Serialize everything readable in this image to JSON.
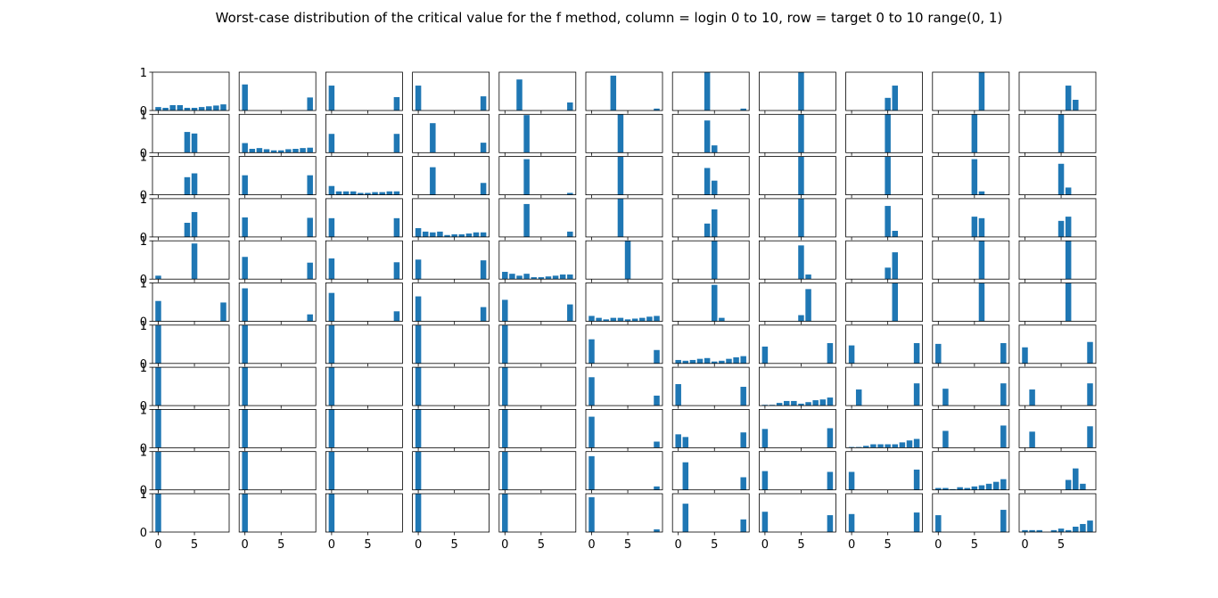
{
  "chart_data": {
    "type": "bar",
    "title": "Worst-case distribution of the critical value for the f method, column = login 0 to 10, row = target 0 to 10 range(0, 1)",
    "rows": 11,
    "cols": 11,
    "x": [
      0,
      1,
      2,
      3,
      4,
      5,
      6,
      7,
      8,
      9
    ],
    "xlim": [
      -0.8,
      9.8
    ],
    "ylim": [
      0,
      1
    ],
    "xticks": [
      0,
      5
    ],
    "yticks": [
      0,
      1
    ],
    "color": "#1f77b4",
    "panels": [
      [
        [
          0.09,
          0.07,
          0.14,
          0.14,
          0.07,
          0.07,
          0.09,
          0.11,
          0.13,
          0.16
        ],
        [
          0,
          0,
          0,
          0,
          0.54,
          0.5,
          0,
          0,
          0,
          0
        ],
        [
          0,
          0,
          0,
          0,
          0.46,
          0.56,
          0,
          0,
          0,
          0
        ],
        [
          0,
          0,
          0,
          0,
          0.37,
          0.65,
          0,
          0,
          0,
          0
        ],
        [
          0.09,
          0,
          0,
          0,
          0,
          0.93,
          0,
          0,
          0,
          0
        ],
        [
          0.53,
          0,
          0,
          0,
          0,
          0,
          0,
          0,
          0,
          0.49
        ],
        [
          1,
          0,
          0,
          0,
          0,
          0,
          0,
          0,
          0,
          0
        ],
        [
          1,
          0,
          0,
          0,
          0,
          0,
          0,
          0,
          0,
          0
        ],
        [
          1,
          0,
          0,
          0,
          0,
          0,
          0,
          0,
          0,
          0
        ],
        [
          1,
          0,
          0,
          0,
          0,
          0,
          0,
          0,
          0,
          0
        ],
        [
          1,
          0,
          0,
          0,
          0,
          0,
          0,
          0,
          0,
          0
        ]
      ],
      [
        [
          0.68,
          0,
          0,
          0,
          0,
          0,
          0,
          0,
          0,
          0.34
        ],
        [
          0.25,
          0.1,
          0.12,
          0.09,
          0.06,
          0.06,
          0.09,
          0.1,
          0.12,
          0.13
        ],
        [
          0.51,
          0,
          0,
          0,
          0,
          0,
          0,
          0,
          0,
          0.51
        ],
        [
          0.51,
          0,
          0,
          0,
          0,
          0,
          0,
          0,
          0,
          0.5
        ],
        [
          0.58,
          0,
          0,
          0,
          0,
          0,
          0,
          0,
          0,
          0.43
        ],
        [
          0.86,
          0,
          0,
          0,
          0,
          0,
          0,
          0,
          0,
          0.18
        ],
        [
          1,
          0,
          0,
          0,
          0,
          0,
          0,
          0,
          0,
          0
        ],
        [
          1,
          0,
          0,
          0,
          0,
          0,
          0,
          0,
          0,
          0
        ],
        [
          1,
          0,
          0,
          0,
          0,
          0,
          0,
          0,
          0,
          0
        ],
        [
          1,
          0,
          0,
          0,
          0,
          0,
          0,
          0,
          0,
          0
        ],
        [
          1,
          0,
          0,
          0,
          0,
          0,
          0,
          0,
          0,
          0
        ]
      ],
      [
        [
          0.65,
          0,
          0,
          0,
          0,
          0,
          0,
          0,
          0,
          0.35
        ],
        [
          0.49,
          0,
          0,
          0,
          0,
          0,
          0,
          0,
          0,
          0.49
        ],
        [
          0.23,
          0.09,
          0.09,
          0.09,
          0.05,
          0.05,
          0.07,
          0.07,
          0.09,
          0.09
        ],
        [
          0.49,
          0,
          0,
          0,
          0,
          0,
          0,
          0,
          0,
          0.49
        ],
        [
          0.54,
          0,
          0,
          0,
          0,
          0,
          0,
          0,
          0,
          0.44
        ],
        [
          0.74,
          0,
          0,
          0,
          0,
          0,
          0,
          0,
          0,
          0.26
        ],
        [
          1,
          0,
          0,
          0,
          0,
          0,
          0,
          0,
          0,
          0
        ],
        [
          1,
          0,
          0,
          0,
          0,
          0,
          0,
          0,
          0,
          0
        ],
        [
          1,
          0,
          0,
          0,
          0,
          0,
          0,
          0,
          0,
          0
        ],
        [
          1,
          0,
          0,
          0,
          0,
          0,
          0,
          0,
          0,
          0
        ],
        [
          1,
          0,
          0,
          0,
          0,
          0,
          0,
          0,
          0,
          0
        ]
      ],
      [
        [
          0.65,
          0,
          0,
          0,
          0,
          0,
          0,
          0,
          0,
          0.37
        ],
        [
          0,
          0,
          0.77,
          0,
          0,
          0,
          0,
          0,
          0,
          0.26
        ],
        [
          0,
          0,
          0.72,
          0,
          0,
          0,
          0,
          0,
          0,
          0.31
        ],
        [
          0.23,
          0.14,
          0.12,
          0.14,
          0.05,
          0.07,
          0.07,
          0.09,
          0.12,
          0.12
        ],
        [
          0.51,
          0,
          0,
          0,
          0,
          0,
          0,
          0,
          0,
          0.49
        ],
        [
          0.65,
          0,
          0,
          0,
          0,
          0,
          0,
          0,
          0,
          0.37
        ],
        [
          1,
          0,
          0,
          0,
          0,
          0,
          0,
          0,
          0,
          0
        ],
        [
          1,
          0,
          0,
          0,
          0,
          0,
          0,
          0,
          0,
          0
        ],
        [
          1,
          0,
          0,
          0,
          0,
          0,
          0,
          0,
          0,
          0
        ],
        [
          1,
          0,
          0,
          0,
          0,
          0,
          0,
          0,
          0,
          0
        ],
        [
          1,
          0,
          0,
          0,
          0,
          0,
          0,
          0,
          0,
          0
        ]
      ],
      [
        [
          0,
          0,
          0.81,
          0,
          0,
          0,
          0,
          0,
          0,
          0.21
        ],
        [
          0,
          0,
          0,
          0.98,
          0,
          0,
          0,
          0,
          0,
          0
        ],
        [
          0,
          0,
          0,
          0.93,
          0,
          0,
          0,
          0,
          0,
          0.05
        ],
        [
          0,
          0,
          0,
          0.86,
          0,
          0,
          0,
          0,
          0,
          0.14
        ],
        [
          0.19,
          0.14,
          0.09,
          0.14,
          0.05,
          0.05,
          0.07,
          0.09,
          0.12,
          0.12
        ],
        [
          0.56,
          0,
          0,
          0,
          0,
          0,
          0,
          0,
          0,
          0.44
        ],
        [
          1,
          0,
          0,
          0,
          0,
          0,
          0,
          0,
          0,
          0
        ],
        [
          1,
          0,
          0,
          0,
          0,
          0,
          0,
          0,
          0,
          0
        ],
        [
          1,
          0,
          0,
          0,
          0,
          0,
          0,
          0,
          0,
          0
        ],
        [
          1,
          0,
          0,
          0,
          0,
          0,
          0,
          0,
          0,
          0
        ],
        [
          1,
          0,
          0,
          0,
          0,
          0,
          0,
          0,
          0,
          0
        ]
      ],
      [
        [
          0,
          0,
          0,
          0.91,
          0,
          0,
          0,
          0,
          0,
          0.05
        ],
        [
          0,
          0,
          0,
          0,
          1,
          0,
          0,
          0,
          0,
          0
        ],
        [
          0,
          0,
          0,
          0,
          1,
          0,
          0,
          0,
          0,
          0
        ],
        [
          0,
          0,
          0,
          0,
          1,
          0,
          0,
          0,
          0,
          0
        ],
        [
          0,
          0,
          0,
          0,
          0,
          1,
          0,
          0,
          0,
          0
        ],
        [
          0.14,
          0.09,
          0.05,
          0.09,
          0.09,
          0.05,
          0.07,
          0.09,
          0.12,
          0.14
        ],
        [
          0.63,
          0,
          0,
          0,
          0,
          0,
          0,
          0,
          0,
          0.35
        ],
        [
          0.74,
          0,
          0,
          0,
          0,
          0,
          0,
          0,
          0,
          0.26
        ],
        [
          0.81,
          0,
          0,
          0,
          0,
          0,
          0,
          0,
          0,
          0.16
        ],
        [
          0.88,
          0,
          0,
          0,
          0,
          0,
          0,
          0,
          0,
          0.09
        ],
        [
          0.91,
          0,
          0,
          0,
          0,
          0,
          0,
          0,
          0,
          0.07
        ]
      ],
      [
        [
          0,
          0,
          0,
          0,
          1,
          0,
          0,
          0,
          0,
          0.05
        ],
        [
          0,
          0,
          0,
          0,
          0.84,
          0.19,
          0,
          0,
          0,
          0
        ],
        [
          0,
          0,
          0,
          0,
          0.7,
          0.37,
          0,
          0,
          0,
          0
        ],
        [
          0,
          0,
          0,
          0,
          0.35,
          0.72,
          0,
          0,
          0,
          0
        ],
        [
          0,
          0,
          0,
          0,
          0,
          1,
          0,
          0,
          0,
          0
        ],
        [
          0,
          0,
          0,
          0,
          0,
          0.95,
          0.09,
          0,
          0,
          0
        ],
        [
          0.09,
          0.07,
          0.09,
          0.12,
          0.14,
          0.05,
          0.07,
          0.12,
          0.16,
          0.19
        ],
        [
          0.56,
          0,
          0,
          0,
          0,
          0,
          0,
          0,
          0,
          0.49
        ],
        [
          0.35,
          0.28,
          0,
          0,
          0,
          0,
          0,
          0,
          0,
          0.4
        ],
        [
          0,
          0.72,
          0,
          0,
          0,
          0,
          0,
          0,
          0,
          0.33
        ],
        [
          0,
          0.74,
          0,
          0,
          0,
          0,
          0,
          0,
          0,
          0.33
        ]
      ],
      [
        [
          0,
          0,
          0,
          0,
          0,
          1,
          0,
          0,
          0,
          0
        ],
        [
          0,
          0,
          0,
          0,
          0,
          1,
          0,
          0,
          0,
          0
        ],
        [
          0,
          0,
          0,
          0,
          0,
          1,
          0,
          0,
          0,
          0
        ],
        [
          0,
          0,
          0,
          0,
          0,
          1,
          0,
          0,
          0,
          0
        ],
        [
          0,
          0,
          0,
          0,
          0,
          0.88,
          0.12,
          0,
          0,
          0
        ],
        [
          0,
          0,
          0,
          0,
          0,
          0.16,
          0.84,
          0,
          0,
          0
        ],
        [
          0.44,
          0,
          0,
          0,
          0,
          0,
          0,
          0,
          0,
          0.53
        ],
        [
          0.02,
          0.02,
          0.07,
          0.12,
          0.12,
          0.05,
          0.09,
          0.14,
          0.16,
          0.21
        ],
        [
          0.49,
          0,
          0,
          0,
          0,
          0,
          0,
          0,
          0,
          0.51
        ],
        [
          0.49,
          0,
          0,
          0,
          0,
          0,
          0,
          0,
          0,
          0.47
        ],
        [
          0.53,
          0,
          0,
          0,
          0,
          0,
          0,
          0,
          0,
          0.44
        ]
      ],
      [
        [
          0,
          0,
          0,
          0,
          0,
          0.33,
          0.65,
          0,
          0,
          0
        ],
        [
          0,
          0,
          0,
          0,
          0,
          1,
          0,
          0,
          0,
          0
        ],
        [
          0,
          0,
          0,
          0,
          0,
          1,
          0,
          0,
          0,
          0
        ],
        [
          0,
          0,
          0,
          0,
          0,
          0.81,
          0.16,
          0,
          0,
          0
        ],
        [
          0,
          0,
          0,
          0,
          0,
          0.3,
          0.7,
          0,
          0,
          0
        ],
        [
          0,
          0,
          0,
          0,
          0,
          0,
          1,
          0,
          0,
          0
        ],
        [
          0.47,
          0,
          0,
          0,
          0,
          0,
          0,
          0,
          0,
          0.53
        ],
        [
          0,
          0.42,
          0,
          0,
          0,
          0,
          0,
          0,
          0,
          0.58
        ],
        [
          0.02,
          0.02,
          0.05,
          0.09,
          0.09,
          0.09,
          0.09,
          0.14,
          0.19,
          0.23
        ],
        [
          0.47,
          0,
          0,
          0,
          0,
          0,
          0,
          0,
          0,
          0.53
        ],
        [
          0.47,
          0,
          0,
          0,
          0,
          0,
          0,
          0,
          0,
          0.51
        ]
      ],
      [
        [
          0,
          0,
          0,
          0,
          0,
          0,
          1,
          0,
          0,
          0
        ],
        [
          0,
          0,
          0,
          0,
          0,
          1,
          0,
          0,
          0,
          0
        ],
        [
          0,
          0,
          0,
          0,
          0,
          0.93,
          0.09,
          0,
          0,
          0
        ],
        [
          0,
          0,
          0,
          0,
          0,
          0.53,
          0.49,
          0,
          0,
          0
        ],
        [
          0,
          0,
          0,
          0,
          0,
          0,
          1,
          0,
          0,
          0
        ],
        [
          0,
          0,
          0,
          0,
          0,
          0,
          1,
          0,
          0,
          0
        ],
        [
          0.51,
          0,
          0,
          0,
          0,
          0,
          0,
          0,
          0,
          0.53
        ],
        [
          0,
          0.44,
          0,
          0,
          0,
          0,
          0,
          0,
          0,
          0.58
        ],
        [
          0,
          0.44,
          0,
          0,
          0,
          0,
          0,
          0,
          0,
          0.58
        ],
        [
          0.05,
          0.05,
          0.02,
          0.07,
          0.05,
          0.09,
          0.12,
          0.16,
          0.21,
          0.28
        ],
        [
          0.44,
          0,
          0,
          0,
          0,
          0,
          0,
          0,
          0,
          0.58
        ]
      ],
      [
        [
          0,
          0,
          0,
          0,
          0,
          0,
          0.65,
          0.28,
          0,
          0
        ],
        [
          0,
          0,
          0,
          0,
          0,
          1,
          0,
          0,
          0,
          0
        ],
        [
          0,
          0,
          0,
          0,
          0,
          0.81,
          0.19,
          0,
          0,
          0
        ],
        [
          0,
          0,
          0,
          0,
          0,
          0.42,
          0.53,
          0,
          0,
          0
        ],
        [
          0,
          0,
          0,
          0,
          0,
          0,
          1,
          0,
          0,
          0
        ],
        [
          0,
          0,
          0,
          0,
          0,
          0,
          1,
          0,
          0,
          0
        ],
        [
          0.42,
          0,
          0,
          0,
          0,
          0,
          0,
          0,
          0,
          0.56
        ],
        [
          0,
          0.42,
          0,
          0,
          0,
          0,
          0,
          0,
          0,
          0.58
        ],
        [
          0,
          0.42,
          0,
          0,
          0,
          0,
          0,
          0,
          0,
          0.56
        ],
        [
          0,
          0,
          0,
          0,
          0,
          0,
          0.26,
          0.56,
          0.16,
          0
        ],
        [
          0.05,
          0.05,
          0.05,
          0,
          0.05,
          0.09,
          0.05,
          0.14,
          0.21,
          0.3
        ]
      ]
    ]
  }
}
